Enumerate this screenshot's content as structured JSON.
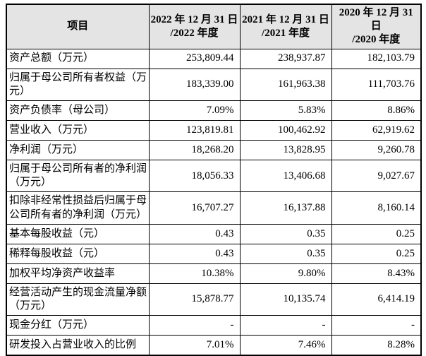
{
  "colors": {
    "header_bg": "#e4e4e4",
    "border": "#000000",
    "text": "#000000",
    "body_bg": "#ffffff"
  },
  "table": {
    "header": {
      "item_label": "项目",
      "periods": [
        {
          "line1": "2022 年 12 月 31 日",
          "line2": "/2022 年度"
        },
        {
          "line1": "2021 年 12 月 31 日",
          "line2": "/2021 年度"
        },
        {
          "line1": "2020 年 12 月 31 日",
          "line2": "/2020 年度"
        }
      ]
    },
    "rows": [
      {
        "label": "资产总额（万元）",
        "values": [
          "253,809.44",
          "238,937.87",
          "182,103.79"
        ]
      },
      {
        "label": "归属于母公司所有者权益（万元）",
        "values": [
          "183,339.00",
          "161,963.38",
          "111,703.76"
        ]
      },
      {
        "label": "资产负债率（母公司）",
        "values": [
          "7.09%",
          "5.83%",
          "8.86%"
        ]
      },
      {
        "label": "营业收入（万元）",
        "values": [
          "123,819.81",
          "100,462.92",
          "62,919.62"
        ]
      },
      {
        "label": "净利润（万元）",
        "values": [
          "18,268.20",
          "13,828.95",
          "9,260.78"
        ]
      },
      {
        "label": "归属于母公司所有者的净利润（万元）",
        "values": [
          "18,056.33",
          "13,406.68",
          "9,027.67"
        ]
      },
      {
        "label": "扣除非经常性损益后归属于母公司所有者的净利润（万元）",
        "values": [
          "16,707.27",
          "16,137.88",
          "8,160.14"
        ]
      },
      {
        "label": "基本每股收益（元）",
        "values": [
          "0.43",
          "0.35",
          "0.25"
        ]
      },
      {
        "label": "稀释每股收益（元）",
        "values": [
          "0.43",
          "0.35",
          "0.25"
        ]
      },
      {
        "label": "加权平均净资产收益率",
        "values": [
          "10.38%",
          "9.80%",
          "8.43%"
        ]
      },
      {
        "label": "经营活动产生的现金流量净额（万元）",
        "values": [
          "15,878.77",
          "10,135.74",
          "6,414.19"
        ]
      },
      {
        "label": "现金分红（万元）",
        "values": [
          "-",
          "-",
          "-"
        ]
      },
      {
        "label": "研发投入占营业收入的比例",
        "values": [
          "7.01%",
          "7.46%",
          "8.28%"
        ]
      }
    ]
  }
}
